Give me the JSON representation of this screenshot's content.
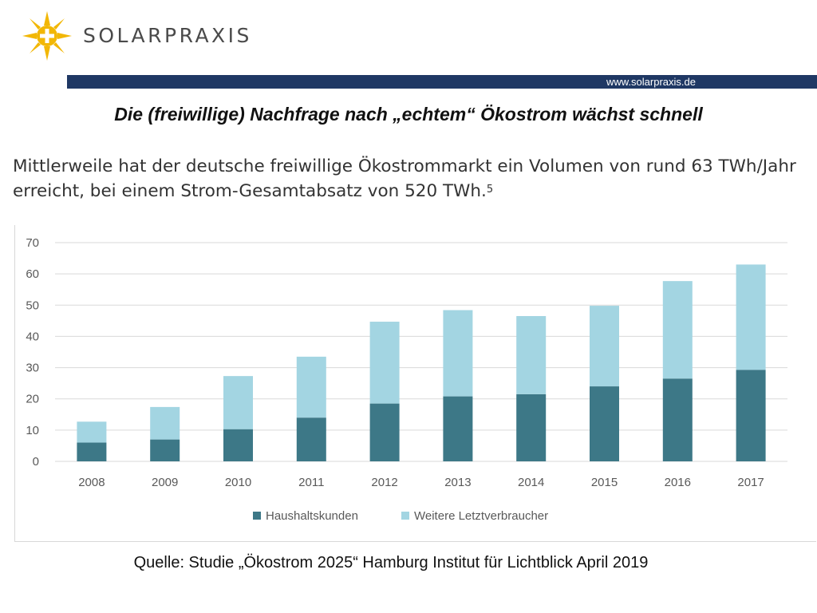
{
  "brand": {
    "name": "SOLARPRAXIS",
    "website": "www.solarpraxis.de"
  },
  "colors": {
    "header_bar": "#1f3864",
    "logo_sun": "#f2b705",
    "series_dark": "#3d7887",
    "series_light": "#a3d5e2"
  },
  "slide": {
    "title": "Die (freiwillige) Nachfrage nach „echtem“ Ökostrom wächst schnell",
    "intro_line1": "Mittlerweile hat der deutsche freiwillige Ökostrommarkt ein Volumen von rund 63 TWh/Jahr",
    "intro_line2": "erreicht, bei einem Strom-Gesamtabsatz von 520 TWh.",
    "intro_footnote": "5",
    "source": "Quelle: Studie „Ökostrom 2025“ Hamburg Institut für Lichtblick April 2019"
  },
  "chart_data": {
    "type": "bar",
    "stacked": true,
    "categories": [
      "2008",
      "2009",
      "2010",
      "2011",
      "2012",
      "2013",
      "2014",
      "2015",
      "2016",
      "2017"
    ],
    "series": [
      {
        "name": "Haushaltskunden",
        "values": [
          6,
          7,
          10.3,
          14,
          18.5,
          20.8,
          21.5,
          24,
          26.5,
          29.3
        ]
      },
      {
        "name": "Weitere Letztverbraucher",
        "values": [
          6.7,
          10.4,
          17,
          19.5,
          26.2,
          27.6,
          25,
          25.8,
          31.2,
          33.7
        ]
      }
    ],
    "yticks": [
      0,
      10,
      20,
      30,
      40,
      50,
      60,
      70
    ],
    "ylim": [
      0,
      70
    ],
    "grid": true,
    "legend": "bottom",
    "title": "",
    "xlabel": "",
    "ylabel": ""
  }
}
